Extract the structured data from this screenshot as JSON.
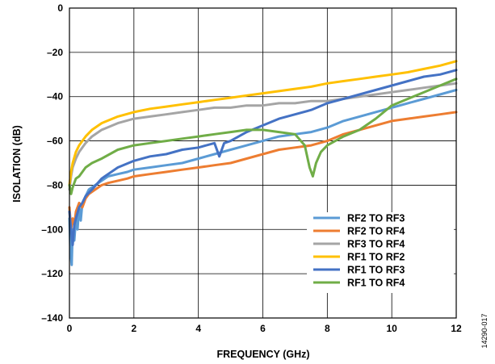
{
  "chart_data": {
    "type": "line",
    "title": "",
    "xlabel": "FREQUENCY (GHz)",
    "ylabel": "ISOLATION (dB)",
    "xlim": [
      0,
      12
    ],
    "ylim": [
      -140,
      0
    ],
    "xticks": [
      0,
      2,
      4,
      6,
      8,
      10,
      12
    ],
    "xtick_labels": [
      "0",
      "2",
      "4",
      "6",
      "8",
      "10",
      "12"
    ],
    "yticks": [
      0,
      -20,
      -40,
      -60,
      -80,
      -100,
      -120,
      -140
    ],
    "ytick_labels": [
      "0",
      "–20",
      "–40",
      "–60",
      "–80",
      "–100",
      "–120",
      "–140"
    ],
    "grid": true,
    "legend_position": "bottom-right",
    "figure_id": "14290-017",
    "series": [
      {
        "name": "RF2 TO RF3",
        "color": "#5b9bd5",
        "x": [
          0,
          0.03,
          0.07,
          0.1,
          0.15,
          0.2,
          0.25,
          0.3,
          0.35,
          0.4,
          0.5,
          0.6,
          0.8,
          1.0,
          1.2,
          1.5,
          1.8,
          2.0,
          2.5,
          3.0,
          3.5,
          4.0,
          4.5,
          5.0,
          5.5,
          6.0,
          6.5,
          7.0,
          7.5,
          8.0,
          8.5,
          9.0,
          9.5,
          10.0,
          10.5,
          11.0,
          11.5,
          12.0
        ],
        "y": [
          -95,
          -110,
          -116,
          -100,
          -105,
          -95,
          -100,
          -90,
          -96,
          -88,
          -85,
          -82,
          -80,
          -78,
          -76,
          -75,
          -74,
          -73,
          -72,
          -71,
          -70,
          -68,
          -66,
          -64,
          -62,
          -60,
          -58,
          -57,
          -56,
          -54,
          -51,
          -49,
          -47,
          -45,
          -43,
          -41,
          -39,
          -37
        ]
      },
      {
        "name": "RF2 TO RF4",
        "color": "#ed7d31",
        "x": [
          0,
          0.05,
          0.1,
          0.15,
          0.2,
          0.3,
          0.4,
          0.5,
          0.6,
          0.8,
          1.0,
          1.2,
          1.5,
          1.8,
          2.0,
          2.5,
          3.0,
          3.5,
          4.0,
          4.5,
          5.0,
          5.5,
          6.0,
          6.5,
          7.0,
          7.5,
          8.0,
          8.5,
          9.0,
          9.5,
          10.0,
          10.5,
          11.0,
          11.5,
          12.0
        ],
        "y": [
          -90,
          -100,
          -95,
          -98,
          -92,
          -88,
          -90,
          -86,
          -84,
          -82,
          -80,
          -79,
          -78,
          -77,
          -76,
          -75,
          -74,
          -73,
          -72,
          -71,
          -70,
          -68,
          -66,
          -64,
          -63,
          -62,
          -60,
          -57,
          -55,
          -53,
          -51,
          -50,
          -49,
          -48,
          -47
        ]
      },
      {
        "name": "RF3 TO RF4",
        "color": "#a5a5a5",
        "x": [
          0,
          0.05,
          0.1,
          0.2,
          0.3,
          0.5,
          0.7,
          1.0,
          1.5,
          2.0,
          2.5,
          3.0,
          3.5,
          4.0,
          4.5,
          5.0,
          5.5,
          6.0,
          6.5,
          7.0,
          7.5,
          8.0,
          8.5,
          9.0,
          9.5,
          10.0,
          10.5,
          11.0,
          11.5,
          12.0
        ],
        "y": [
          -82,
          -76,
          -72,
          -68,
          -65,
          -61,
          -58,
          -55,
          -52,
          -50,
          -49,
          -48,
          -47,
          -46,
          -45,
          -45,
          -44,
          -44,
          -43,
          -43,
          -42,
          -42,
          -41,
          -40,
          -39,
          -38,
          -37,
          -36,
          -35,
          -34
        ]
      },
      {
        "name": "RF1 TO RF2",
        "color": "#ffc000",
        "x": [
          0,
          0.05,
          0.1,
          0.2,
          0.3,
          0.5,
          0.7,
          1.0,
          1.5,
          2.0,
          2.5,
          3.0,
          3.5,
          4.0,
          4.5,
          5.0,
          5.5,
          6.0,
          6.5,
          7.0,
          7.5,
          8.0,
          8.5,
          9.0,
          9.5,
          10.0,
          10.5,
          11.0,
          11.5,
          12.0
        ],
        "y": [
          -80,
          -74,
          -70,
          -65,
          -62,
          -58,
          -55,
          -52,
          -49,
          -47,
          -45.5,
          -44.5,
          -43.5,
          -42.5,
          -41.5,
          -40.5,
          -39.5,
          -38.5,
          -37.5,
          -36.5,
          -35.5,
          -34,
          -33,
          -32,
          -31,
          -30,
          -29,
          -27.5,
          -26,
          -24
        ]
      },
      {
        "name": "RF1 TO RF3",
        "color": "#4472c4",
        "x": [
          0,
          0.05,
          0.1,
          0.15,
          0.2,
          0.3,
          0.4,
          0.5,
          0.7,
          1.0,
          1.5,
          2.0,
          2.5,
          3.0,
          3.5,
          4.0,
          4.5,
          4.65,
          4.8,
          5.0,
          5.5,
          6.0,
          6.5,
          7.0,
          7.5,
          8.0,
          8.5,
          9.0,
          9.5,
          10.0,
          10.5,
          11.0,
          11.5,
          12.0
        ],
        "y": [
          -92,
          -100,
          -107,
          -98,
          -95,
          -90,
          -88,
          -85,
          -82,
          -77,
          -72,
          -69,
          -67,
          -66,
          -64,
          -63,
          -61,
          -67,
          -61,
          -60,
          -56,
          -53,
          -50,
          -48,
          -46,
          -43,
          -41,
          -39,
          -37,
          -35,
          -33,
          -31,
          -30,
          -28
        ]
      },
      {
        "name": "RF1 TO RF4",
        "color": "#70ad47",
        "x": [
          0,
          0.05,
          0.1,
          0.2,
          0.3,
          0.5,
          0.7,
          1.0,
          1.5,
          2.0,
          2.5,
          3.0,
          3.5,
          4.0,
          4.5,
          5.0,
          5.5,
          6.0,
          6.5,
          7.0,
          7.3,
          7.45,
          7.55,
          7.65,
          7.8,
          8.0,
          8.5,
          9.0,
          9.5,
          10.0,
          10.5,
          11.0,
          11.5,
          12.0
        ],
        "y": [
          -80,
          -84,
          -81,
          -77,
          -76,
          -72,
          -70,
          -68,
          -64,
          -62,
          -61,
          -60,
          -59,
          -58,
          -57,
          -56,
          -55,
          -55,
          -56,
          -57,
          -62,
          -72,
          -76,
          -70,
          -65,
          -62,
          -58,
          -55,
          -50,
          -44,
          -41,
          -38,
          -35,
          -32
        ]
      }
    ]
  }
}
